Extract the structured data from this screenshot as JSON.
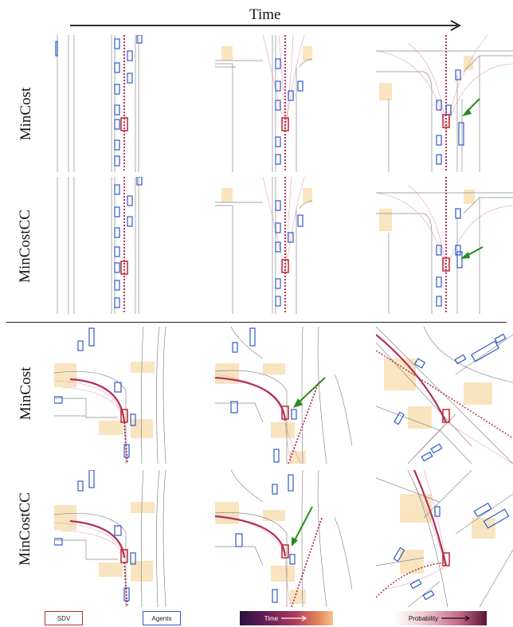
{
  "header": {
    "time_label": "Time"
  },
  "rows": [
    {
      "label": "MinCost",
      "scene": "highway"
    },
    {
      "label": "MinCostCC",
      "scene": "highway"
    },
    {
      "label": "MinCost",
      "scene": "intersection"
    },
    {
      "label": "MinCostCC",
      "scene": "intersection"
    }
  ],
  "legend": {
    "sdv": "SDV",
    "agents": "Agents",
    "time": "Time",
    "probability": "Probability"
  },
  "colors": {
    "sdv": "#c0262d",
    "agents": "#2f5bc4",
    "arrow": "#2a8a1f",
    "trajectory": "#b3305a",
    "crosswalk": "#f7deb0",
    "road_line": "#8a8a8a"
  }
}
